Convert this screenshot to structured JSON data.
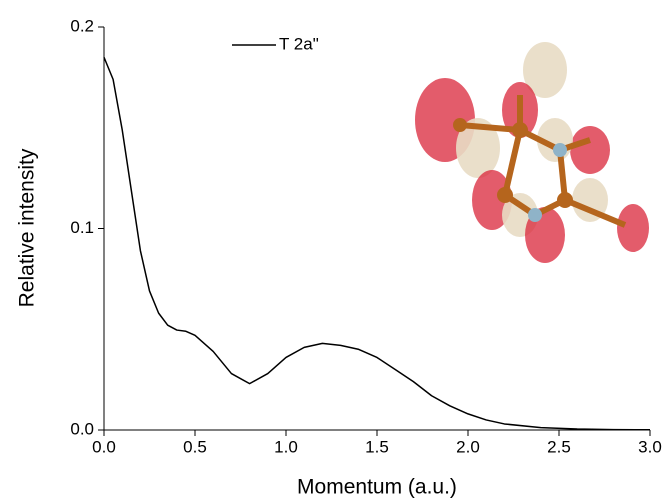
{
  "chart_data": {
    "type": "line",
    "x_label": "Momentum (a.u.)",
    "y_label": "Relative intensity",
    "x": [
      0,
      0.05,
      0.1,
      0.15,
      0.2,
      0.25,
      0.3,
      0.35,
      0.4,
      0.45,
      0.5,
      0.6,
      0.7,
      0.8,
      0.9,
      1.0,
      1.1,
      1.2,
      1.3,
      1.4,
      1.5,
      1.6,
      1.7,
      1.8,
      1.9,
      2.0,
      2.1,
      2.2,
      2.4,
      2.6,
      2.8,
      3.0
    ],
    "series": [
      {
        "name": "T 2a\"",
        "color": "#000000",
        "values": [
          0.185,
          0.174,
          0.149,
          0.119,
          0.089,
          0.069,
          0.058,
          0.052,
          0.0496,
          0.049,
          0.047,
          0.039,
          0.028,
          0.023,
          0.028,
          0.036,
          0.041,
          0.043,
          0.042,
          0.04,
          0.036,
          0.03,
          0.024,
          0.017,
          0.012,
          0.008,
          0.005,
          0.003,
          0.0012,
          0.0005,
          0.0002,
          0.0001
        ]
      }
    ],
    "xlim": [
      0,
      3
    ],
    "ylim": [
      0,
      0.2
    ],
    "xticks": [
      {
        "value": 0,
        "label": "0.0"
      },
      0.5,
      {
        "value": 1,
        "label": "1.0"
      },
      1.5,
      {
        "value": 2,
        "label": "2.0"
      },
      2.5,
      {
        "value": 3,
        "label": "3.0"
      }
    ],
    "yticks": [
      {
        "value": 0,
        "label": "0.0"
      },
      0.1,
      0.2
    ],
    "legend": "top"
  }
}
